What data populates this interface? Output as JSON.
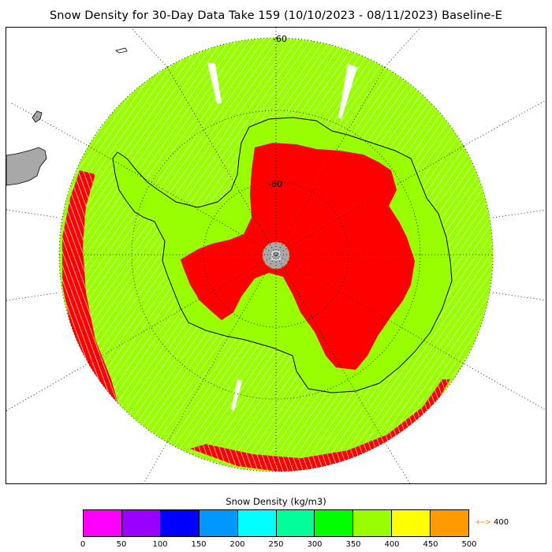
{
  "title": "Snow Density for 30-Day Data Take 159 (10/10/2023 - 08/11/2023) Baseline-E",
  "map": {
    "latitude_labels": [
      "-60",
      "-80"
    ],
    "colors": {
      "land_fill": "#a8a8a8",
      "low_density": "#99ff00",
      "high_density": "#ff0000",
      "pole_hole": "#a8a8a8",
      "graticule": "#000000",
      "coastline": "#000000"
    }
  },
  "colorbar": {
    "title": "Snow Density (kg/m3)",
    "ticks": [
      "0",
      "50",
      "100",
      "150",
      "200",
      "250",
      "300",
      "350",
      "400",
      "450",
      "500"
    ],
    "colors": [
      "#ff00ff",
      "#9900ff",
      "#0000ff",
      "#0099ff",
      "#00ffff",
      "#00ff99",
      "#00ff00",
      "#99ff00",
      "#ffff00",
      "#ff9900"
    ],
    "overflow_marker": {
      "arrow": "+-->",
      "value": "400",
      "color": "#f0901a"
    }
  }
}
